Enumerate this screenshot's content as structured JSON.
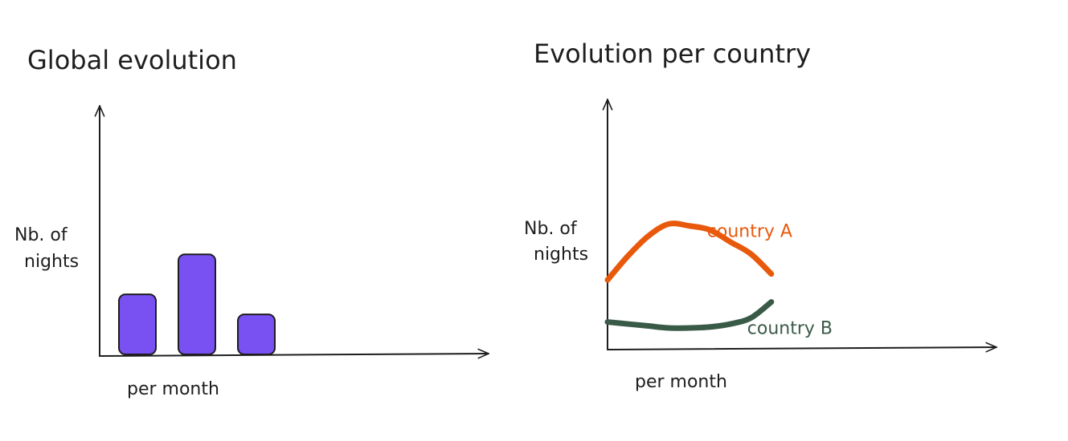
{
  "chart_data": [
    {
      "type": "bar",
      "title": "Global evolution",
      "ylabel_lines": [
        "Nb. of",
        "nights"
      ],
      "xlabel": "per month",
      "categories": [
        "",
        "",
        ""
      ],
      "values": [
        3,
        5,
        2
      ],
      "ylim": [
        0,
        12.5
      ],
      "bar_color": "#7950f2"
    },
    {
      "type": "line",
      "title": "Evolution per country",
      "ylabel_lines": [
        "Nb. of",
        "nights"
      ],
      "xlabel": "per month",
      "x": [
        0,
        1,
        2,
        3,
        4,
        5,
        6,
        7,
        8
      ],
      "xlim": [
        0,
        19
      ],
      "ylim": [
        0,
        12.5
      ],
      "series": [
        {
          "name": "country A",
          "color": "#e8590c",
          "values": [
            3.4,
            4.6,
            5.6,
            6.2,
            6.1,
            5.9,
            5.3,
            4.7,
            3.7
          ]
        },
        {
          "name": "country B",
          "color": "#3a5a48",
          "values": [
            1.3,
            1.2,
            1.1,
            1.0,
            1.0,
            1.05,
            1.2,
            1.5,
            2.3
          ]
        }
      ]
    }
  ]
}
